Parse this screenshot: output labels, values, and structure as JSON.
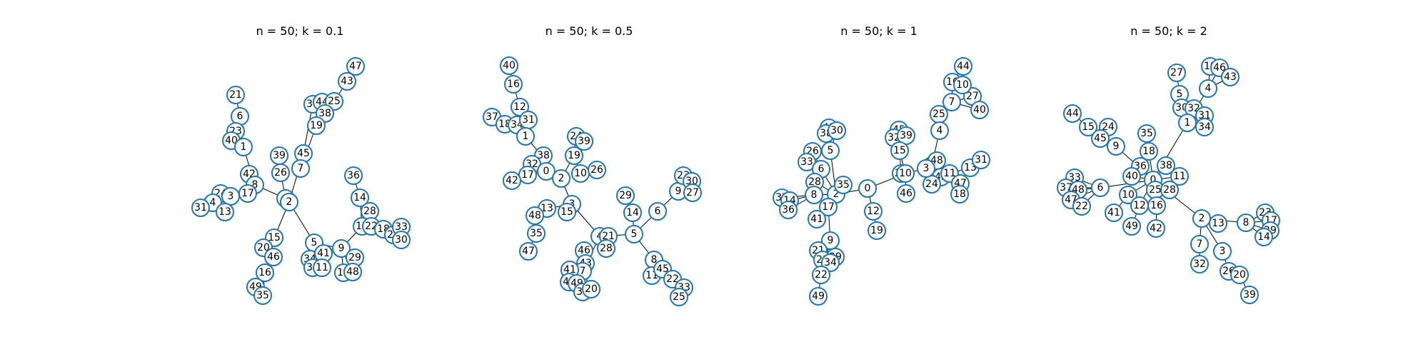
{
  "panels": [
    {
      "title": "n = 50; k = 0.1",
      "nodes": [
        {
          "id": "21"
        },
        {
          "id": "6"
        },
        {
          "id": "23"
        },
        {
          "id": "40"
        },
        {
          "id": "1"
        },
        {
          "id": "42"
        },
        {
          "id": "8"
        },
        {
          "id": "17"
        },
        {
          "id": "24"
        },
        {
          "id": "3"
        },
        {
          "id": "4"
        },
        {
          "id": "31"
        },
        {
          "id": "13"
        },
        {
          "id": "39"
        },
        {
          "id": "26"
        },
        {
          "id": "0"
        },
        {
          "id": "2"
        },
        {
          "id": "45"
        },
        {
          "id": "7"
        },
        {
          "id": "37"
        },
        {
          "id": "44"
        },
        {
          "id": "25"
        },
        {
          "id": "38"
        },
        {
          "id": "19"
        },
        {
          "id": "43"
        },
        {
          "id": "47"
        },
        {
          "id": "15"
        },
        {
          "id": "20"
        },
        {
          "id": "46"
        },
        {
          "id": "16"
        },
        {
          "id": "49"
        },
        {
          "id": "35"
        },
        {
          "id": "5"
        },
        {
          "id": "34"
        },
        {
          "id": "41"
        },
        {
          "id": "32"
        },
        {
          "id": "11"
        },
        {
          "id": "36"
        },
        {
          "id": "14"
        },
        {
          "id": "28"
        },
        {
          "id": "10"
        },
        {
          "id": "22"
        },
        {
          "id": "18"
        },
        {
          "id": "27"
        },
        {
          "id": "33"
        },
        {
          "id": "30"
        },
        {
          "id": "9"
        },
        {
          "id": "29"
        },
        {
          "id": "12"
        },
        {
          "id": "48"
        }
      ],
      "edges": [
        [
          "21",
          "6"
        ],
        [
          "6",
          "23"
        ],
        [
          "23",
          "1"
        ],
        [
          "40",
          "1"
        ],
        [
          "1",
          "8"
        ],
        [
          "42",
          "8"
        ],
        [
          "8",
          "17"
        ],
        [
          "8",
          "0"
        ],
        [
          "17",
          "3"
        ],
        [
          "24",
          "3"
        ],
        [
          "3",
          "4"
        ],
        [
          "4",
          "31"
        ],
        [
          "3",
          "13"
        ],
        [
          "39",
          "26"
        ],
        [
          "26",
          "0"
        ],
        [
          "0",
          "2"
        ],
        [
          "2",
          "45"
        ],
        [
          "45",
          "7"
        ],
        [
          "7",
          "37"
        ],
        [
          "7",
          "19"
        ],
        [
          "37",
          "44"
        ],
        [
          "44",
          "25"
        ],
        [
          "44",
          "38"
        ],
        [
          "25",
          "43"
        ],
        [
          "43",
          "47"
        ],
        [
          "2",
          "15"
        ],
        [
          "15",
          "20"
        ],
        [
          "20",
          "46"
        ],
        [
          "46",
          "16"
        ],
        [
          "16",
          "49"
        ],
        [
          "16",
          "35"
        ],
        [
          "2",
          "5"
        ],
        [
          "5",
          "34"
        ],
        [
          "5",
          "41"
        ],
        [
          "5",
          "32"
        ],
        [
          "5",
          "11"
        ],
        [
          "5",
          "9"
        ],
        [
          "9",
          "10"
        ],
        [
          "10",
          "14"
        ],
        [
          "14",
          "36"
        ],
        [
          "10",
          "28"
        ],
        [
          "10",
          "22"
        ],
        [
          "22",
          "18"
        ],
        [
          "18",
          "27"
        ],
        [
          "27",
          "33"
        ],
        [
          "27",
          "30"
        ],
        [
          "9",
          "29"
        ],
        [
          "9",
          "12"
        ],
        [
          "9",
          "48"
        ]
      ]
    },
    {
      "title": "n = 50; k = 0.5",
      "nodes": [
        {
          "id": "40"
        },
        {
          "id": "16"
        },
        {
          "id": "12"
        },
        {
          "id": "37"
        },
        {
          "id": "18"
        },
        {
          "id": "34"
        },
        {
          "id": "31"
        },
        {
          "id": "1"
        },
        {
          "id": "38"
        },
        {
          "id": "32"
        },
        {
          "id": "0"
        },
        {
          "id": "17"
        },
        {
          "id": "42"
        },
        {
          "id": "2"
        },
        {
          "id": "24"
        },
        {
          "id": "39"
        },
        {
          "id": "19"
        },
        {
          "id": "10"
        },
        {
          "id": "26"
        },
        {
          "id": "3"
        },
        {
          "id": "13"
        },
        {
          "id": "15"
        },
        {
          "id": "48"
        },
        {
          "id": "35"
        },
        {
          "id": "47"
        },
        {
          "id": "29"
        },
        {
          "id": "14"
        },
        {
          "id": "6"
        },
        {
          "id": "9"
        },
        {
          "id": "23"
        },
        {
          "id": "30"
        },
        {
          "id": "27"
        },
        {
          "id": "4"
        },
        {
          "id": "21"
        },
        {
          "id": "28"
        },
        {
          "id": "5"
        },
        {
          "id": "46"
        },
        {
          "id": "43"
        },
        {
          "id": "7"
        },
        {
          "id": "41"
        },
        {
          "id": "44"
        },
        {
          "id": "49"
        },
        {
          "id": "36"
        },
        {
          "id": "20"
        },
        {
          "id": "8"
        },
        {
          "id": "11"
        },
        {
          "id": "45"
        },
        {
          "id": "22"
        },
        {
          "id": "33"
        },
        {
          "id": "25"
        }
      ],
      "edges": [
        [
          "40",
          "16"
        ],
        [
          "16",
          "12"
        ],
        [
          "12",
          "1"
        ],
        [
          "37",
          "18"
        ],
        [
          "18",
          "1"
        ],
        [
          "34",
          "1"
        ],
        [
          "31",
          "1"
        ],
        [
          "1",
          "2"
        ],
        [
          "38",
          "0"
        ],
        [
          "32",
          "0"
        ],
        [
          "0",
          "17"
        ],
        [
          "17",
          "42"
        ],
        [
          "0",
          "2"
        ],
        [
          "2",
          "19"
        ],
        [
          "19",
          "24"
        ],
        [
          "19",
          "39"
        ],
        [
          "19",
          "10"
        ],
        [
          "10",
          "26"
        ],
        [
          "2",
          "3"
        ],
        [
          "3",
          "13"
        ],
        [
          "3",
          "15"
        ],
        [
          "13",
          "48"
        ],
        [
          "48",
          "35"
        ],
        [
          "35",
          "47"
        ],
        [
          "3",
          "4"
        ],
        [
          "4",
          "21"
        ],
        [
          "4",
          "28"
        ],
        [
          "4",
          "5"
        ],
        [
          "5",
          "14"
        ],
        [
          "14",
          "29"
        ],
        [
          "5",
          "6"
        ],
        [
          "6",
          "9"
        ],
        [
          "9",
          "23"
        ],
        [
          "9",
          "30"
        ],
        [
          "9",
          "27"
        ],
        [
          "4",
          "7"
        ],
        [
          "7",
          "46"
        ],
        [
          "7",
          "43"
        ],
        [
          "7",
          "41"
        ],
        [
          "7",
          "44"
        ],
        [
          "7",
          "49"
        ],
        [
          "7",
          "36"
        ],
        [
          "7",
          "20"
        ],
        [
          "5",
          "8"
        ],
        [
          "8",
          "11"
        ],
        [
          "8",
          "45"
        ],
        [
          "8",
          "22"
        ],
        [
          "22",
          "33"
        ],
        [
          "22",
          "25"
        ]
      ]
    },
    {
      "title": "n = 50; k = 1",
      "nodes": [
        {
          "id": "43"
        },
        {
          "id": "38"
        },
        {
          "id": "30"
        },
        {
          "id": "5"
        },
        {
          "id": "26"
        },
        {
          "id": "33"
        },
        {
          "id": "6"
        },
        {
          "id": "28"
        },
        {
          "id": "37"
        },
        {
          "id": "14"
        },
        {
          "id": "8"
        },
        {
          "id": "36"
        },
        {
          "id": "2"
        },
        {
          "id": "35"
        },
        {
          "id": "17"
        },
        {
          "id": "41"
        },
        {
          "id": "9"
        },
        {
          "id": "21"
        },
        {
          "id": "23"
        },
        {
          "id": "29"
        },
        {
          "id": "34"
        },
        {
          "id": "22"
        },
        {
          "id": "49"
        },
        {
          "id": "0"
        },
        {
          "id": "12"
        },
        {
          "id": "19"
        },
        {
          "id": "45"
        },
        {
          "id": "32"
        },
        {
          "id": "39"
        },
        {
          "id": "15"
        },
        {
          "id": "20"
        },
        {
          "id": "10"
        },
        {
          "id": "46"
        },
        {
          "id": "44"
        },
        {
          "id": "16"
        },
        {
          "id": "7"
        },
        {
          "id": "27"
        },
        {
          "id": "40"
        },
        {
          "id": "25"
        },
        {
          "id": "4"
        },
        {
          "id": "1"
        },
        {
          "id": "48"
        },
        {
          "id": "42"
        },
        {
          "id": "24"
        },
        {
          "id": "11"
        },
        {
          "id": "47"
        },
        {
          "id": "18"
        },
        {
          "id": "13"
        },
        {
          "id": "31"
        },
        {
          "id": "3"
        }
      ],
      "edges": [
        [
          "43",
          "5"
        ],
        [
          "38",
          "5"
        ],
        [
          "30",
          "5"
        ],
        [
          "5",
          "2"
        ],
        [
          "26",
          "6"
        ],
        [
          "33",
          "6"
        ],
        [
          "6",
          "2"
        ],
        [
          "28",
          "2"
        ],
        [
          "37",
          "8"
        ],
        [
          "14",
          "8"
        ],
        [
          "36",
          "8"
        ],
        [
          "8",
          "2"
        ],
        [
          "2",
          "35"
        ],
        [
          "2",
          "17"
        ],
        [
          "17",
          "41"
        ],
        [
          "17",
          "9"
        ],
        [
          "9",
          "21"
        ],
        [
          "9",
          "23"
        ],
        [
          "9",
          "29"
        ],
        [
          "9",
          "34"
        ],
        [
          "9",
          "22"
        ],
        [
          "22",
          "49"
        ],
        [
          "2",
          "0"
        ],
        [
          "0",
          "12"
        ],
        [
          "12",
          "19"
        ],
        [
          "0",
          "10"
        ],
        [
          "45",
          "15"
        ],
        [
          "32",
          "15"
        ],
        [
          "39",
          "15"
        ],
        [
          "15",
          "20"
        ],
        [
          "15",
          "10"
        ],
        [
          "10",
          "46"
        ],
        [
          "10",
          "3"
        ],
        [
          "3",
          "1"
        ],
        [
          "1",
          "4"
        ],
        [
          "4",
          "25"
        ],
        [
          "25",
          "7"
        ],
        [
          "7",
          "16"
        ],
        [
          "16",
          "44"
        ],
        [
          "7",
          "27"
        ],
        [
          "7",
          "40"
        ],
        [
          "3",
          "48"
        ],
        [
          "3",
          "42"
        ],
        [
          "3",
          "24"
        ],
        [
          "3",
          "11"
        ],
        [
          "11",
          "47"
        ],
        [
          "11",
          "18"
        ],
        [
          "11",
          "13"
        ],
        [
          "13",
          "31"
        ]
      ]
    },
    {
      "title": "n = 50; k = 2",
      "nodes": [
        {
          "id": "27"
        },
        {
          "id": "19"
        },
        {
          "id": "46"
        },
        {
          "id": "43"
        },
        {
          "id": "4"
        },
        {
          "id": "5"
        },
        {
          "id": "30"
        },
        {
          "id": "32"
        },
        {
          "id": "1"
        },
        {
          "id": "31"
        },
        {
          "id": "34"
        },
        {
          "id": "44"
        },
        {
          "id": "15"
        },
        {
          "id": "24"
        },
        {
          "id": "45"
        },
        {
          "id": "9"
        },
        {
          "id": "35"
        },
        {
          "id": "18"
        },
        {
          "id": "36"
        },
        {
          "id": "38"
        },
        {
          "id": "40"
        },
        {
          "id": "11"
        },
        {
          "id": "0"
        },
        {
          "id": "25"
        },
        {
          "id": "28"
        },
        {
          "id": "33"
        },
        {
          "id": "37"
        },
        {
          "id": "48"
        },
        {
          "id": "6"
        },
        {
          "id": "47"
        },
        {
          "id": "22"
        },
        {
          "id": "10"
        },
        {
          "id": "12"
        },
        {
          "id": "16"
        },
        {
          "id": "41"
        },
        {
          "id": "49"
        },
        {
          "id": "42"
        },
        {
          "id": "2"
        },
        {
          "id": "13"
        },
        {
          "id": "7"
        },
        {
          "id": "32b"
        },
        {
          "id": "8"
        },
        {
          "id": "23"
        },
        {
          "id": "17"
        },
        {
          "id": "29"
        },
        {
          "id": "14"
        },
        {
          "id": "3"
        },
        {
          "id": "26"
        },
        {
          "id": "20"
        },
        {
          "id": "39"
        }
      ],
      "labels": {
        "32b": "32"
      },
      "edges": [
        [
          "19",
          "4"
        ],
        [
          "46",
          "4"
        ],
        [
          "43",
          "4"
        ],
        [
          "4",
          "1"
        ],
        [
          "27",
          "5"
        ],
        [
          "5",
          "30"
        ],
        [
          "30",
          "1"
        ],
        [
          "32",
          "1"
        ],
        [
          "31",
          "1"
        ],
        [
          "34",
          "1"
        ],
        [
          "1",
          "0"
        ],
        [
          "44",
          "15"
        ],
        [
          "15",
          "45"
        ],
        [
          "24",
          "45"
        ],
        [
          "45",
          "9"
        ],
        [
          "9",
          "0"
        ],
        [
          "35",
          "18"
        ],
        [
          "18",
          "0"
        ],
        [
          "36",
          "0"
        ],
        [
          "38",
          "0"
        ],
        [
          "40",
          "0"
        ],
        [
          "11",
          "0"
        ],
        [
          "25",
          "0"
        ],
        [
          "28",
          "0"
        ],
        [
          "0",
          "6"
        ],
        [
          "6",
          "33"
        ],
        [
          "6",
          "37"
        ],
        [
          "6",
          "48"
        ],
        [
          "6",
          "47"
        ],
        [
          "6",
          "22"
        ],
        [
          "0",
          "10"
        ],
        [
          "10",
          "41"
        ],
        [
          "0",
          "12"
        ],
        [
          "12",
          "49"
        ],
        [
          "0",
          "16"
        ],
        [
          "16",
          "42"
        ],
        [
          "0",
          "2"
        ],
        [
          "2",
          "13"
        ],
        [
          "2",
          "7"
        ],
        [
          "7",
          "32b"
        ],
        [
          "2",
          "8"
        ],
        [
          "8",
          "23"
        ],
        [
          "8",
          "17"
        ],
        [
          "8",
          "29"
        ],
        [
          "8",
          "14"
        ],
        [
          "2",
          "3"
        ],
        [
          "3",
          "26"
        ],
        [
          "26",
          "20"
        ],
        [
          "20",
          "39"
        ]
      ]
    }
  ]
}
